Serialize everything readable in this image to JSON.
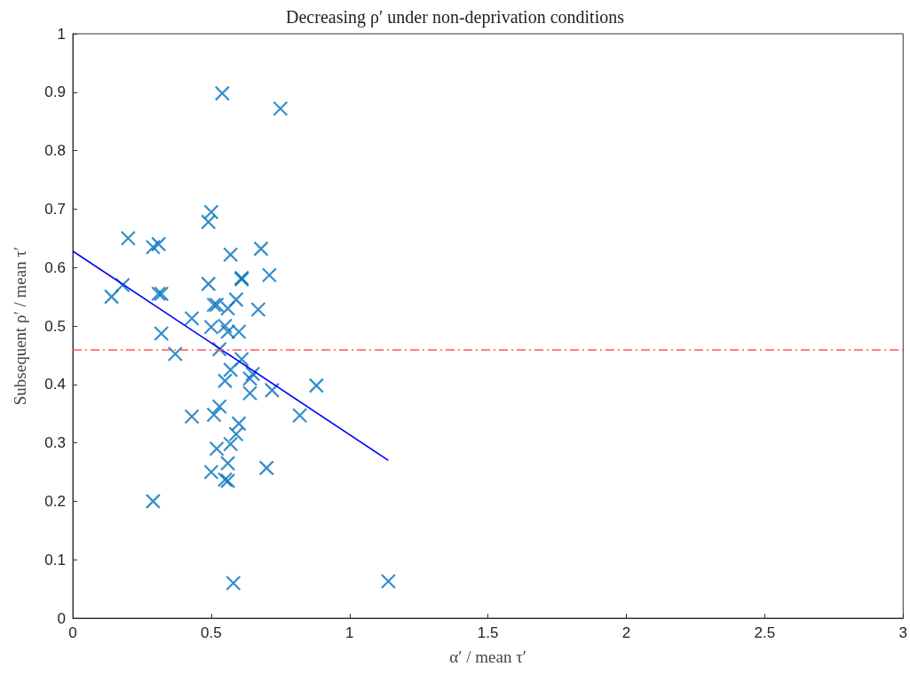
{
  "chart_data": {
    "type": "scatter",
    "title": "Decreasing ρ′ under non-deprivation conditions",
    "xlabel": "α′ / mean τ′",
    "ylabel": "Subsequent ρ′ / mean τ′",
    "xlim": [
      0,
      3
    ],
    "xticks": [
      0,
      0.5,
      1,
      1.5,
      2,
      2.5,
      3
    ],
    "ylim": [
      0,
      1
    ],
    "yticks": [
      0,
      0.1,
      0.2,
      0.3,
      0.4,
      0.5,
      0.6,
      0.7,
      0.8,
      0.9,
      1
    ],
    "grid": false,
    "marker": "cross",
    "series": [
      {
        "color": "#0072bd",
        "x": [
          0.14,
          0.18,
          0.2,
          0.29,
          0.31,
          0.31,
          0.32,
          0.32,
          0.29,
          0.37,
          0.43,
          0.43,
          0.49,
          0.5,
          0.49,
          0.5,
          0.51,
          0.52,
          0.5,
          0.51,
          0.52,
          0.53,
          0.53,
          0.54,
          0.55,
          0.55,
          0.56,
          0.56,
          0.56,
          0.56,
          0.55,
          0.57,
          0.57,
          0.57,
          0.58,
          0.59,
          0.59,
          0.6,
          0.6,
          0.61,
          0.61,
          0.61,
          0.64,
          0.64,
          0.65,
          0.67,
          0.68,
          0.7,
          0.71,
          0.72,
          0.75,
          0.82,
          0.88,
          1.14
        ],
        "values": [
          0.55,
          0.57,
          0.65,
          0.635,
          0.64,
          0.555,
          0.555,
          0.487,
          0.2,
          0.452,
          0.513,
          0.345,
          0.678,
          0.695,
          0.572,
          0.498,
          0.536,
          0.536,
          0.25,
          0.348,
          0.29,
          0.46,
          0.362,
          0.898,
          0.5,
          0.406,
          0.53,
          0.49,
          0.265,
          0.235,
          0.237,
          0.622,
          0.425,
          0.298,
          0.06,
          0.545,
          0.315,
          0.333,
          0.49,
          0.58,
          0.582,
          0.443,
          0.41,
          0.385,
          0.418,
          0.528,
          0.632,
          0.257,
          0.587,
          0.39,
          0.872,
          0.347,
          0.398,
          0.063
        ]
      },
      {
        "type": "line",
        "color": "#0000ff",
        "marker": "none",
        "line_style": "solid",
        "x": [
          0,
          1.14
        ],
        "values": [
          0.628,
          0.27
        ]
      }
    ],
    "ref_lines": [
      {
        "axis": "y",
        "value": 0.459,
        "color": "#ff5555",
        "line_style": "dashdot"
      }
    ]
  }
}
